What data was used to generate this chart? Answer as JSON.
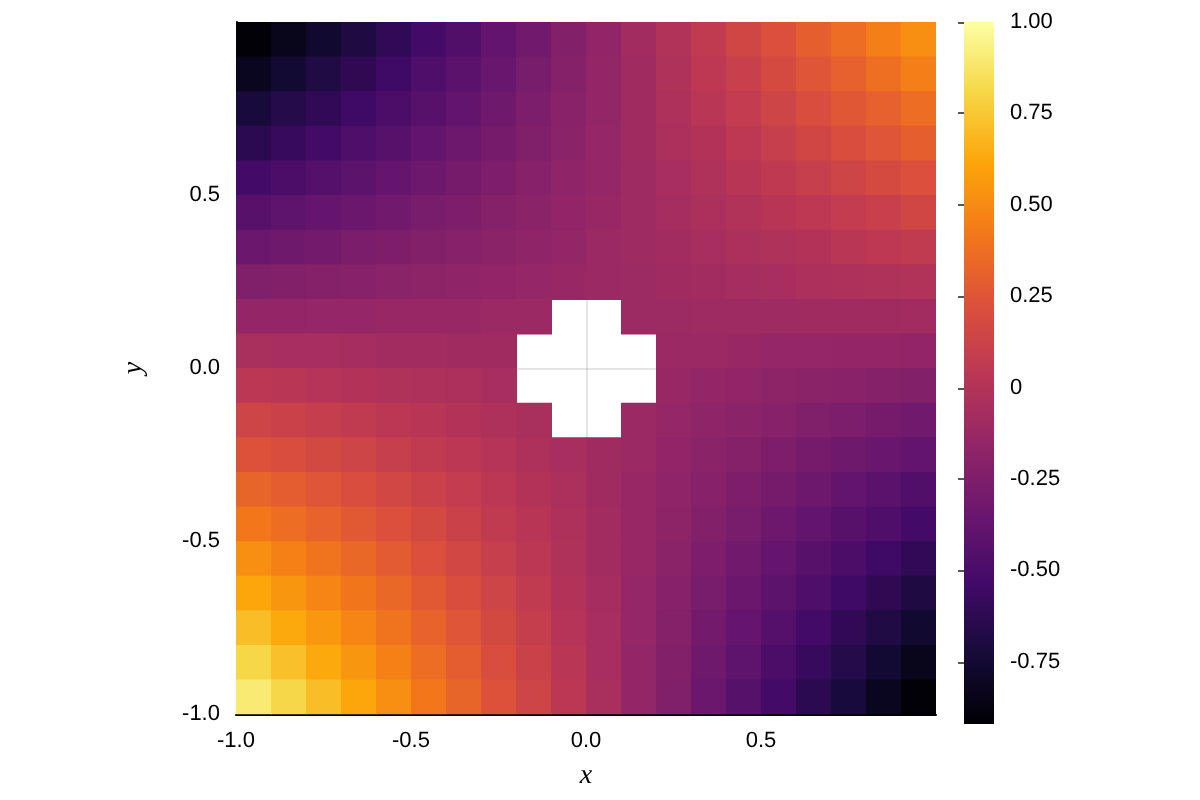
{
  "chart_data": {
    "type": "heatmap",
    "xlabel": "x",
    "ylabel": "y",
    "xlim": [
      -1,
      1
    ],
    "ylim": [
      -1,
      1
    ],
    "xticks": [
      {
        "value": -1,
        "label": "-1.0"
      },
      {
        "value": -0.5,
        "label": "-0.5"
      },
      {
        "value": 0,
        "label": "0.0"
      },
      {
        "value": 0.5,
        "label": "0.5"
      }
    ],
    "yticks": [
      {
        "value": -1,
        "label": "-1.0"
      },
      {
        "value": -0.5,
        "label": "-0.5"
      },
      {
        "value": 0,
        "label": "0.0"
      },
      {
        "value": 0.5,
        "label": "0.5"
      }
    ],
    "grid": true,
    "clim": [
      -0.92,
      1
    ],
    "cticks": [
      {
        "value": -0.75,
        "label": "-0.75"
      },
      {
        "value": -0.5,
        "label": "-0.50"
      },
      {
        "value": -0.25,
        "label": "-0.25"
      },
      0,
      {
        "value": 0.25,
        "label": "0.25"
      },
      {
        "value": 0.5,
        "label": "0.50"
      },
      {
        "value": 0.75,
        "label": "0.75"
      },
      {
        "value": 1,
        "label": "1.00"
      }
    ],
    "cells": [
      [
        -0.91,
        -0.84,
        -0.76,
        -0.69,
        -0.61,
        -0.53,
        -0.46,
        -0.38,
        -0.31,
        -0.23,
        -0.16,
        -0.08,
        -0.01,
        0.07,
        0.15,
        0.22,
        0.3,
        0.37,
        0.45,
        0.52
      ],
      [
        -0.82,
        -0.75,
        -0.68,
        -0.62,
        -0.55,
        -0.48,
        -0.42,
        -0.35,
        -0.28,
        -0.22,
        -0.15,
        -0.09,
        -0.02,
        0.05,
        0.11,
        0.18,
        0.25,
        0.31,
        0.38,
        0.45
      ],
      [
        -0.72,
        -0.66,
        -0.61,
        -0.55,
        -0.49,
        -0.43,
        -0.38,
        -0.32,
        -0.26,
        -0.2,
        -0.15,
        -0.09,
        -0.03,
        0.03,
        0.08,
        0.14,
        0.2,
        0.26,
        0.31,
        0.37
      ],
      [
        -0.63,
        -0.58,
        -0.53,
        -0.48,
        -0.43,
        -0.38,
        -0.33,
        -0.29,
        -0.24,
        -0.19,
        -0.14,
        -0.09,
        -0.04,
        0.0,
        0.05,
        0.1,
        0.15,
        0.2,
        0.25,
        0.3
      ],
      [
        -0.53,
        -0.49,
        -0.45,
        -0.41,
        -0.37,
        -0.33,
        -0.29,
        -0.25,
        -0.21,
        -0.17,
        -0.14,
        -0.1,
        -0.06,
        -0.02,
        0.02,
        0.06,
        0.1,
        0.14,
        0.18,
        0.22
      ],
      [
        -0.43,
        -0.4,
        -0.37,
        -0.34,
        -0.31,
        -0.28,
        -0.25,
        -0.22,
        -0.19,
        -0.16,
        -0.13,
        -0.1,
        -0.07,
        -0.04,
        -0.01,
        0.02,
        0.05,
        0.08,
        0.11,
        0.15
      ],
      [
        -0.34,
        -0.32,
        -0.3,
        -0.27,
        -0.25,
        -0.23,
        -0.21,
        -0.19,
        -0.17,
        -0.15,
        -0.12,
        -0.1,
        -0.08,
        -0.06,
        -0.04,
        -0.02,
        0.0,
        0.03,
        0.05,
        0.07
      ],
      [
        -0.24,
        -0.23,
        -0.22,
        -0.21,
        -0.19,
        -0.18,
        -0.17,
        -0.16,
        -0.14,
        -0.13,
        -0.12,
        -0.11,
        -0.09,
        -0.08,
        -0.07,
        -0.06,
        -0.04,
        -0.03,
        -0.02,
        -0.01
      ],
      [
        -0.15,
        -0.15,
        -0.14,
        -0.14,
        -0.13,
        -0.13,
        -0.13,
        -0.12,
        -0.12,
        null,
        null,
        -0.11,
        -0.11,
        -0.1,
        -0.1,
        -0.1,
        -0.09,
        -0.09,
        -0.09,
        -0.08
      ],
      [
        -0.05,
        -0.06,
        -0.06,
        -0.07,
        -0.08,
        -0.08,
        -0.09,
        -0.09,
        null,
        null,
        null,
        null,
        -0.12,
        -0.12,
        -0.13,
        -0.14,
        -0.14,
        -0.15,
        -0.15,
        -0.16
      ],
      [
        0.04,
        0.03,
        0.01,
        0.0,
        -0.02,
        -0.03,
        -0.04,
        -0.06,
        null,
        null,
        null,
        null,
        -0.13,
        -0.15,
        -0.16,
        -0.18,
        -0.19,
        -0.2,
        -0.22,
        -0.23
      ],
      [
        0.14,
        0.12,
        0.09,
        0.07,
        0.04,
        0.02,
        0.0,
        -0.03,
        -0.05,
        null,
        null,
        -0.12,
        -0.14,
        -0.17,
        -0.19,
        -0.21,
        -0.24,
        -0.26,
        -0.29,
        -0.31
      ],
      [
        0.23,
        0.2,
        0.17,
        0.14,
        0.1,
        0.07,
        0.04,
        0.01,
        -0.03,
        -0.06,
        -0.09,
        -0.12,
        -0.16,
        -0.19,
        -0.22,
        -0.25,
        -0.29,
        -0.32,
        -0.35,
        -0.38
      ],
      [
        0.33,
        0.29,
        0.25,
        0.2,
        0.16,
        0.12,
        0.08,
        0.04,
        0.0,
        -0.04,
        -0.09,
        -0.13,
        -0.17,
        -0.21,
        -0.25,
        -0.29,
        -0.33,
        -0.38,
        -0.42,
        -0.46
      ],
      [
        0.42,
        0.37,
        0.32,
        0.27,
        0.22,
        0.17,
        0.12,
        0.07,
        0.02,
        -0.03,
        -0.08,
        -0.13,
        -0.18,
        -0.23,
        -0.28,
        -0.33,
        -0.38,
        -0.43,
        -0.48,
        -0.53
      ],
      [
        0.52,
        0.46,
        0.4,
        0.34,
        0.28,
        0.22,
        0.16,
        0.1,
        0.04,
        -0.02,
        -0.08,
        -0.13,
        -0.19,
        -0.25,
        -0.31,
        -0.37,
        -0.43,
        -0.49,
        -0.55,
        -0.61
      ],
      [
        0.62,
        0.55,
        0.48,
        0.41,
        0.34,
        0.27,
        0.2,
        0.14,
        0.07,
        0.0,
        -0.07,
        -0.14,
        -0.21,
        -0.28,
        -0.34,
        -0.41,
        -0.48,
        -0.55,
        -0.62,
        -0.69
      ],
      [
        0.71,
        0.63,
        0.56,
        0.48,
        0.4,
        0.32,
        0.25,
        0.17,
        0.09,
        0.01,
        -0.06,
        -0.14,
        -0.22,
        -0.3,
        -0.37,
        -0.45,
        -0.53,
        -0.61,
        -0.68,
        -0.76
      ],
      [
        0.81,
        0.72,
        0.63,
        0.55,
        0.46,
        0.37,
        0.29,
        0.2,
        0.12,
        0.03,
        -0.06,
        -0.15,
        -0.23,
        -0.32,
        -0.4,
        -0.49,
        -0.58,
        -0.66,
        -0.75,
        -0.84
      ],
      [
        0.9,
        0.81,
        0.71,
        0.62,
        0.52,
        0.42,
        0.33,
        0.23,
        0.14,
        0.04,
        -0.05,
        -0.15,
        -0.24,
        -0.34,
        -0.44,
        -0.53,
        -0.63,
        -0.72,
        -0.82,
        -0.91
      ]
    ]
  }
}
